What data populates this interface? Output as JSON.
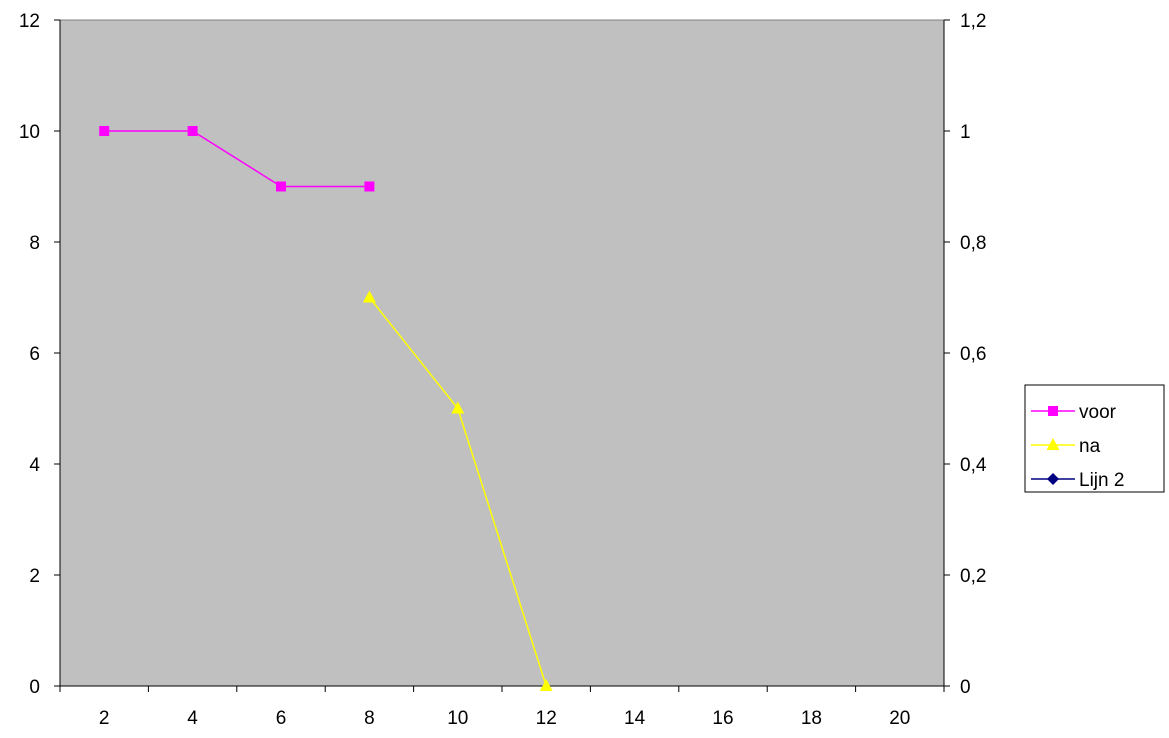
{
  "chart_data": {
    "type": "line",
    "title": "",
    "xlabel": "",
    "ylabel": "",
    "x_categories": [
      "2",
      "4",
      "6",
      "8",
      "10",
      "12",
      "14",
      "16",
      "18",
      "20"
    ],
    "ylim_left": [
      0,
      12
    ],
    "ylim_right": [
      0,
      1.2
    ],
    "y_ticks_left": [
      "0",
      "2",
      "4",
      "6",
      "8",
      "10",
      "12"
    ],
    "y_ticks_right": [
      "0",
      "0,2",
      "0,4",
      "0,6",
      "0,8",
      "1",
      "1,2"
    ],
    "grid": false,
    "plot_background": "#c0c0c0",
    "legend_position": "right",
    "series": [
      {
        "name": "voor",
        "color": "#ff00ff",
        "marker": "square",
        "x": [
          "2",
          "4",
          "6",
          "8"
        ],
        "values": [
          10,
          10,
          9,
          9
        ]
      },
      {
        "name": "na",
        "color": "#ffff00",
        "marker": "triangle",
        "x": [
          "8",
          "10",
          "12"
        ],
        "values": [
          7,
          5,
          0
        ]
      },
      {
        "name": "Lijn 2",
        "color": "#000080",
        "marker": "diamond",
        "x": [],
        "values": []
      }
    ]
  }
}
